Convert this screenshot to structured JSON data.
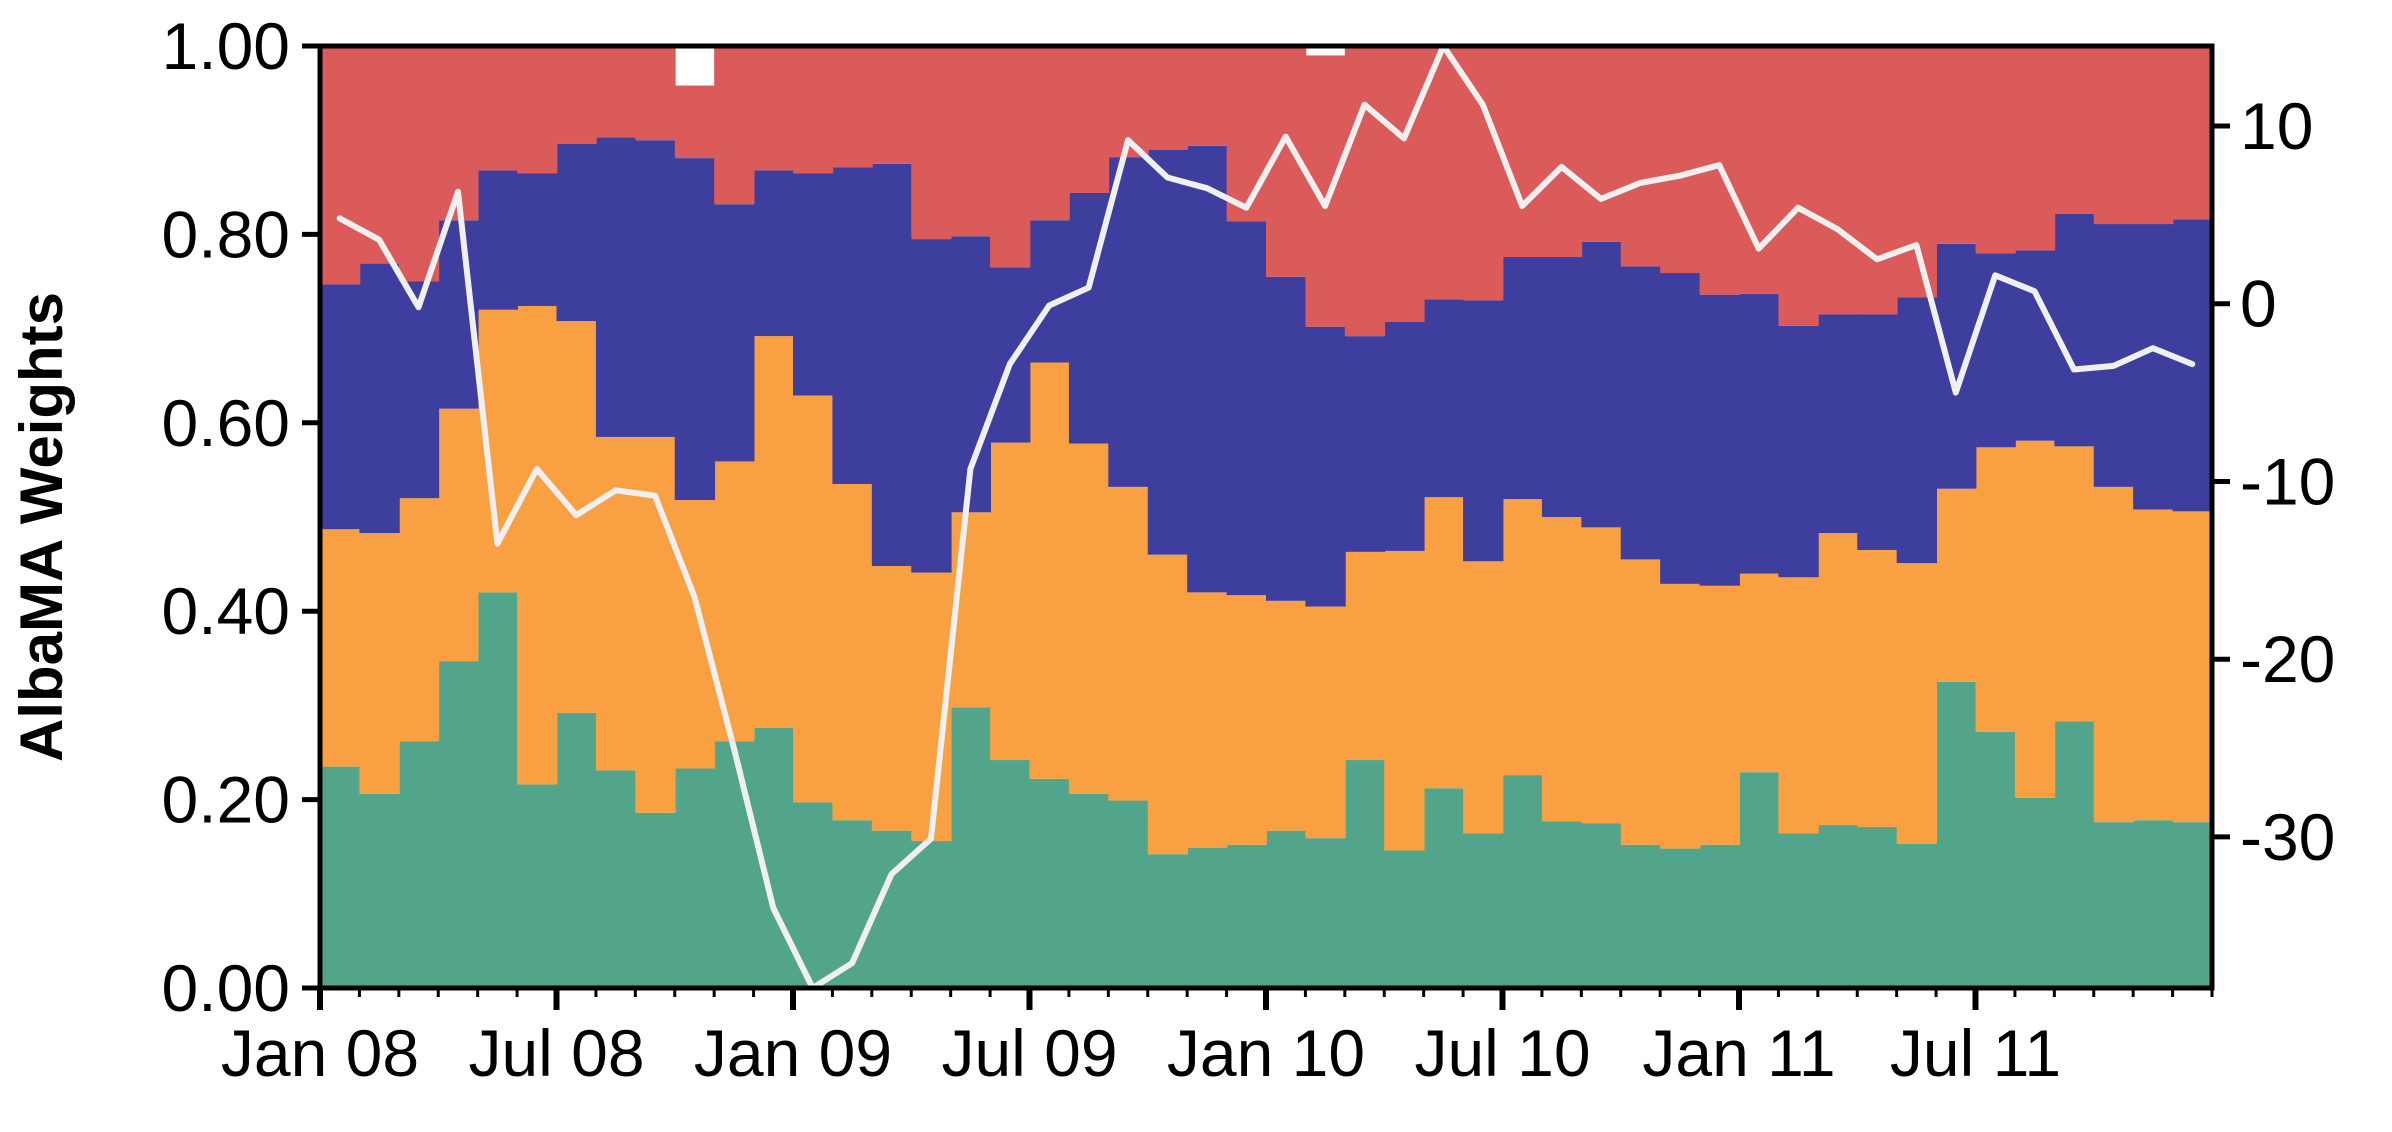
{
  "chart_data": {
    "type": "area",
    "ylabel": "AlbaMA Weights",
    "ylim": [
      0,
      1
    ],
    "y2lim": [
      -38.5,
      14.5
    ],
    "grid": false,
    "x": [
      "2008-01",
      "2008-02",
      "2008-03",
      "2008-04",
      "2008-05",
      "2008-06",
      "2008-07",
      "2008-08",
      "2008-09",
      "2008-10",
      "2008-11",
      "2008-12",
      "2009-01",
      "2009-02",
      "2009-03",
      "2009-04",
      "2009-05",
      "2009-06",
      "2009-07",
      "2009-08",
      "2009-09",
      "2009-10",
      "2009-11",
      "2009-12",
      "2010-01",
      "2010-02",
      "2010-03",
      "2010-04",
      "2010-05",
      "2010-06",
      "2010-07",
      "2010-08",
      "2010-09",
      "2010-10",
      "2010-11",
      "2010-12",
      "2011-01",
      "2011-02",
      "2011-03",
      "2011-04",
      "2011-05",
      "2011-06",
      "2011-07",
      "2011-08",
      "2011-09",
      "2011-10",
      "2011-11",
      "2011-12"
    ],
    "x_ticks": [
      "Jan 08",
      "Jul 08",
      "Jan 09",
      "Jul 09",
      "Jan 10",
      "Jul 10",
      "Jan 11",
      "Jul 11"
    ],
    "x_tick_dates": [
      "2008-01",
      "2008-07",
      "2009-01",
      "2009-07",
      "2010-01",
      "2010-07",
      "2011-01",
      "2011-07"
    ],
    "y_ticks": [
      "0.00",
      "0.20",
      "0.40",
      "0.60",
      "0.80",
      "1.00"
    ],
    "y_tick_values": [
      0,
      0.2,
      0.4,
      0.6,
      0.8,
      1.0
    ],
    "y2_ticks": [
      "-30",
      "-20",
      "-10",
      "0",
      "10"
    ],
    "y2_tick_values": [
      -30,
      -20,
      -10,
      0,
      10
    ],
    "series": [
      {
        "color": "#52a58a",
        "values": [
          0.235,
          0.206,
          0.262,
          0.347,
          0.42,
          0.216,
          0.292,
          0.231,
          0.186,
          0.233,
          0.262,
          0.276,
          0.197,
          0.178,
          0.167,
          0.156,
          0.298,
          0.242,
          0.222,
          0.206,
          0.199,
          0.142,
          0.149,
          0.152,
          0.167,
          0.159,
          0.242,
          0.146,
          0.212,
          0.164,
          0.226,
          0.177,
          0.175,
          0.152,
          0.148,
          0.152,
          0.229,
          0.164,
          0.173,
          0.171,
          0.153,
          0.325,
          0.272,
          0.202,
          0.283,
          0.176,
          0.178,
          0.176
        ]
      },
      {
        "color": "#f9a043",
        "values": [
          0.252,
          0.277,
          0.258,
          0.268,
          0.3,
          0.508,
          0.416,
          0.354,
          0.399,
          0.285,
          0.297,
          0.416,
          0.432,
          0.357,
          0.281,
          0.285,
          0.207,
          0.337,
          0.442,
          0.372,
          0.333,
          0.318,
          0.271,
          0.265,
          0.244,
          0.246,
          0.221,
          0.318,
          0.309,
          0.289,
          0.293,
          0.323,
          0.314,
          0.303,
          0.281,
          0.275,
          0.211,
          0.272,
          0.31,
          0.294,
          0.298,
          0.205,
          0.302,
          0.379,
          0.292,
          0.356,
          0.33,
          0.33
        ]
      },
      {
        "color": "#3d3e9d",
        "values": [
          0.26,
          0.286,
          0.23,
          0.2,
          0.148,
          0.141,
          0.188,
          0.318,
          0.315,
          0.363,
          0.273,
          0.176,
          0.236,
          0.336,
          0.427,
          0.354,
          0.293,
          0.186,
          0.151,
          0.266,
          0.35,
          0.43,
          0.474,
          0.397,
          0.344,
          0.297,
          0.229,
          0.243,
          0.21,
          0.277,
          0.257,
          0.276,
          0.303,
          0.311,
          0.33,
          0.309,
          0.297,
          0.267,
          0.232,
          0.25,
          0.282,
          0.26,
          0.206,
          0.202,
          0.247,
          0.279,
          0.303,
          0.31
        ]
      },
      {
        "color": "#db5a5a",
        "values": [
          0.253,
          0.231,
          0.25,
          0.185,
          0.132,
          0.135,
          0.104,
          0.097,
          0.12,
          0.077,
          0.168,
          0.132,
          0.135,
          0.129,
          0.125,
          0.205,
          0.238,
          0.235,
          0.185,
          0.156,
          0.118,
          0.11,
          0.106,
          0.186,
          0.245,
          0.288,
          0.308,
          0.293,
          0.269,
          0.27,
          0.224,
          0.224,
          0.208,
          0.234,
          0.241,
          0.264,
          0.263,
          0.297,
          0.285,
          0.285,
          0.267,
          0.21,
          0.22,
          0.217,
          0.178,
          0.189,
          0.189,
          0.184
        ]
      }
    ],
    "line": {
      "color": "#f0f0f0",
      "axis": "right",
      "values": [
        4.8,
        3.6,
        -0.2,
        6.3,
        -13.5,
        -9.3,
        -11.9,
        -10.5,
        -10.8,
        -16.5,
        -25.0,
        -34.0,
        -38.5,
        -37.1,
        -32.1,
        -30.1,
        -9.3,
        -3.4,
        -0.1,
        0.9,
        9.2,
        7.1,
        6.5,
        5.4,
        9.4,
        5.5,
        11.2,
        9.3,
        14.5,
        11.2,
        5.5,
        7.7,
        5.9,
        6.8,
        7.2,
        7.8,
        3.1,
        5.4,
        4.2,
        2.5,
        3.3,
        -5.0,
        1.6,
        0.7,
        -3.7,
        -3.5,
        -2.5,
        -3.4
      ]
    }
  }
}
